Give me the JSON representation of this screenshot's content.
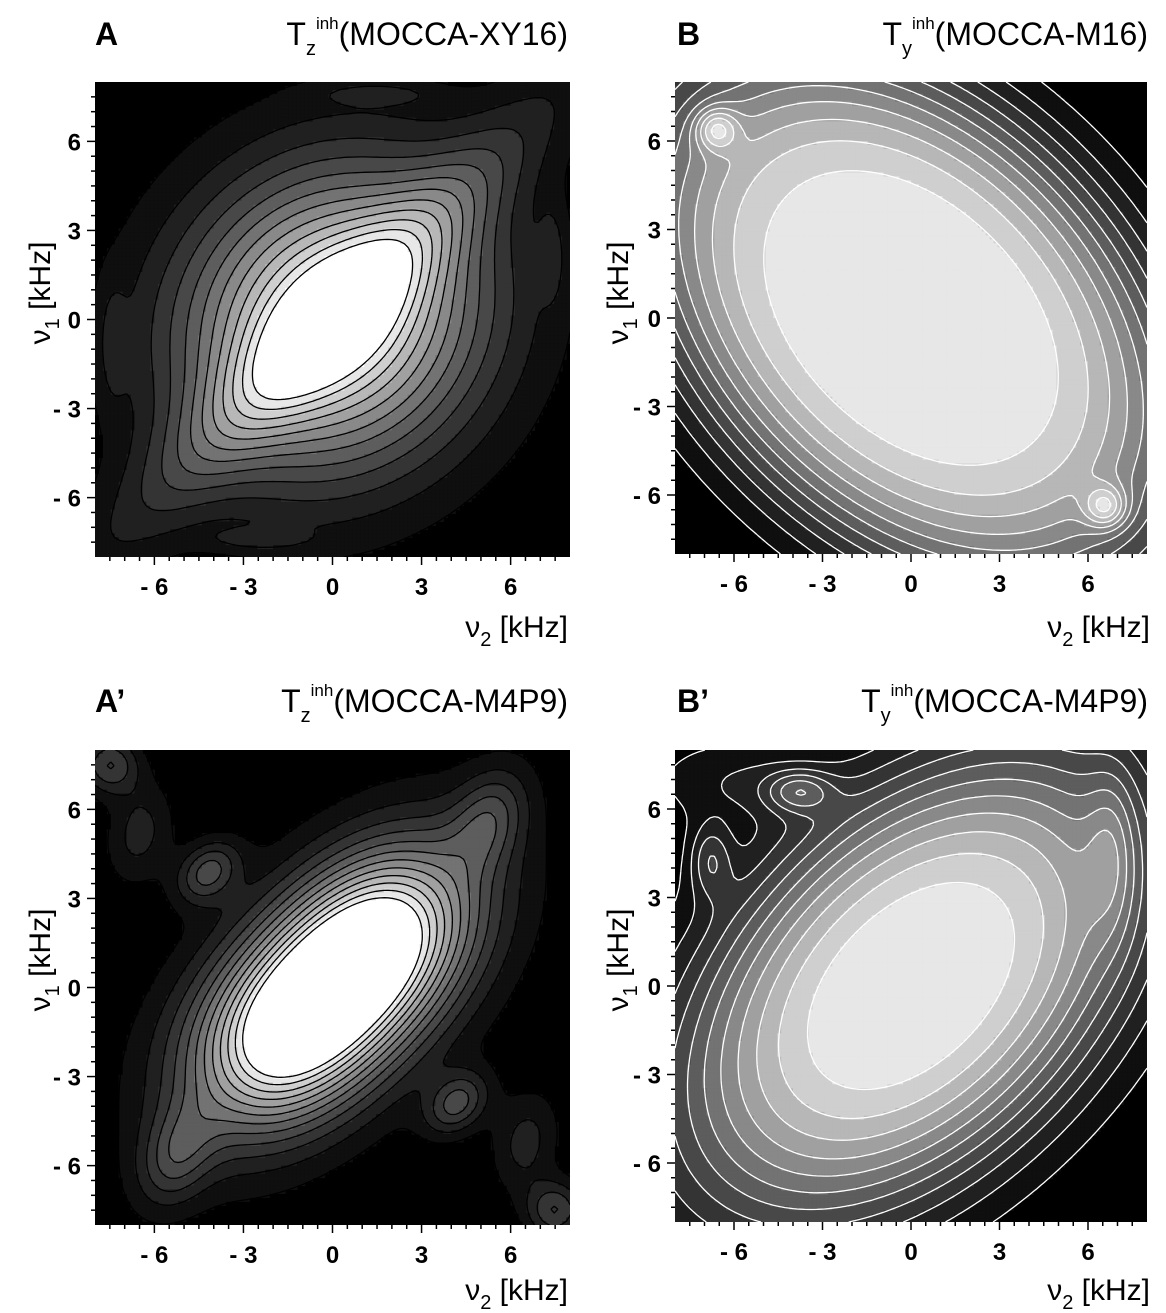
{
  "figure": {
    "background": "#ffffff",
    "contour_line_color_dark": "#000000",
    "contour_line_color_light": "#ffffff"
  },
  "chart_data": [
    {
      "type": "heatmap",
      "panel_label": "A",
      "title": {
        "base": "T",
        "sub": "z",
        "sup": "inh",
        "rest": "(MOCCA-XY16)"
      },
      "xlabel": {
        "base": "ν",
        "sub": "2",
        "rest": " [kHz]"
      },
      "ylabel": {
        "base": "ν",
        "sub": "1",
        "rest": " [kHz]"
      },
      "xlim": [
        -8,
        8
      ],
      "ylim": [
        -8,
        8
      ],
      "ticks": [
        -6,
        -3,
        0,
        3,
        6
      ],
      "tick_labels": [
        "- 6",
        "- 3",
        "0",
        "3",
        "6"
      ],
      "contour_lines": "dark",
      "features": [
        {
          "x": 0,
          "y": 0,
          "sx": 3.6,
          "sy": 3.6,
          "rho": 0.12,
          "amp": 1.05
        },
        {
          "x": 0,
          "y": 0,
          "sx": 5.5,
          "sy": 5.5,
          "rho": 0.96,
          "amp": 0.35
        },
        {
          "x": -7.4,
          "y": -0.8,
          "sx": 0.3,
          "sy": 1.3,
          "rho": 0,
          "amp": 0.12
        },
        {
          "x": 7.4,
          "y": 2.2,
          "sx": 0.3,
          "sy": 1.1,
          "rho": 0,
          "amp": 0.12
        },
        {
          "x": -2.5,
          "y": -7.4,
          "sx": 1.2,
          "sy": 0.25,
          "rho": 0,
          "amp": 0.12
        },
        {
          "x": 1.5,
          "y": 7.6,
          "sx": 1.3,
          "sy": 0.25,
          "rho": 0,
          "amp": 0.12
        }
      ]
    },
    {
      "type": "heatmap",
      "panel_label": "B",
      "title": {
        "base": "T",
        "sub": "y",
        "sup": "inh",
        "rest": "(MOCCA-M16)"
      },
      "xlabel": {
        "base": "ν",
        "sub": "2",
        "rest": " [kHz]"
      },
      "ylabel": {
        "base": "ν",
        "sub": "1",
        "rest": " [kHz]"
      },
      "xlim": [
        -8,
        8
      ],
      "ylim": [
        -8,
        8
      ],
      "ticks": [
        -6,
        -3,
        0,
        3,
        6
      ],
      "tick_labels": [
        "- 6",
        "- 3",
        "0",
        "3",
        "6"
      ],
      "contour_lines": "light",
      "features": [
        {
          "x": 0,
          "y": 0,
          "sx": 6.5,
          "sy": 6.5,
          "rho": -0.4,
          "amp": 1.0,
          "power": 4
        },
        {
          "x": -6.6,
          "y": 6.4,
          "sx": 0.5,
          "sy": 0.5,
          "rho": 0,
          "amp": 0.35
        },
        {
          "x": 6.6,
          "y": -6.4,
          "sx": 0.5,
          "sy": 0.5,
          "rho": 0,
          "amp": 0.35
        }
      ]
    },
    {
      "type": "heatmap",
      "panel_label": "A’",
      "title": {
        "base": "T",
        "sub": "z",
        "sup": "inh",
        "rest": "(MOCCA-M4P9)"
      },
      "xlabel": {
        "base": "ν",
        "sub": "2",
        "rest": " [kHz]"
      },
      "ylabel": {
        "base": "ν",
        "sub": "1",
        "rest": " [kHz]"
      },
      "xlim": [
        -8,
        8
      ],
      "ylim": [
        -8,
        8
      ],
      "ticks": [
        -6,
        -3,
        0,
        3,
        6
      ],
      "tick_labels": [
        "- 6",
        "- 3",
        "0",
        "3",
        "6"
      ],
      "contour_lines": "dark",
      "features": [
        {
          "x": -1.5,
          "y": -1.5,
          "sx": 2.2,
          "sy": 2.2,
          "rho": 0.3,
          "amp": 0.8
        },
        {
          "x": 1.5,
          "y": 1.5,
          "sx": 2.2,
          "sy": 2.2,
          "rho": 0.3,
          "amp": 0.8
        },
        {
          "x": 0,
          "y": 0,
          "sx": 3.5,
          "sy": 3.5,
          "rho": 0.55,
          "amp": 0.45
        },
        {
          "x": -4.2,
          "y": 3.9,
          "sx": 0.75,
          "sy": 0.75,
          "rho": 0.3,
          "amp": 0.35
        },
        {
          "x": 4.2,
          "y": -3.9,
          "sx": 0.75,
          "sy": 0.75,
          "rho": 0.3,
          "amp": 0.35
        },
        {
          "x": 5.3,
          "y": 5.7,
          "sx": 0.9,
          "sy": 1.2,
          "rho": 0.3,
          "amp": 0.28
        },
        {
          "x": -5.3,
          "y": -5.7,
          "sx": 0.9,
          "sy": 1.2,
          "rho": 0.3,
          "amp": 0.28
        },
        {
          "x": -6.5,
          "y": 5.2,
          "sx": 0.8,
          "sy": 1.2,
          "rho": 0.2,
          "amp": 0.2
        },
        {
          "x": 6.5,
          "y": -5.2,
          "sx": 0.8,
          "sy": 1.2,
          "rho": 0.2,
          "amp": 0.2
        },
        {
          "x": -7.5,
          "y": 7.5,
          "sx": 0.7,
          "sy": 0.7,
          "rho": 0,
          "amp": 0.33
        },
        {
          "x": 7.5,
          "y": -7.5,
          "sx": 0.7,
          "sy": 0.7,
          "rho": 0,
          "amp": 0.33
        }
      ]
    },
    {
      "type": "heatmap",
      "panel_label": "B’",
      "title": {
        "base": "T",
        "sub": "y",
        "sup": "inh",
        "rest": "(MOCCA-M4P9)"
      },
      "xlabel": {
        "base": "ν",
        "sub": "2",
        "rest": " [kHz]"
      },
      "ylabel": {
        "base": "ν",
        "sub": "1",
        "rest": " [kHz]"
      },
      "xlim": [
        -8,
        8
      ],
      "ylim": [
        -8,
        8
      ],
      "ticks": [
        -6,
        -3,
        0,
        3,
        6
      ],
      "tick_labels": [
        "- 6",
        "- 3",
        "0",
        "3",
        "6"
      ],
      "contour_lines": "light",
      "features": [
        {
          "x": 0,
          "y": 0,
          "sx": 5.6,
          "sy": 5.6,
          "rho": 0.45,
          "amp": 1.0,
          "power": 3
        },
        {
          "x": -3.8,
          "y": 6.6,
          "sx": 0.8,
          "sy": 0.5,
          "rho": 0,
          "amp": 0.3
        },
        {
          "x": -6.8,
          "y": 4.3,
          "sx": 0.5,
          "sy": 0.9,
          "rho": 0,
          "amp": 0.25
        },
        {
          "x": 6.8,
          "y": 4.6,
          "sx": 0.6,
          "sy": 2.0,
          "rho": 0,
          "amp": 0.2
        },
        {
          "x": -6.0,
          "y": 7.0,
          "sx": 2.0,
          "sy": 1.0,
          "rho": 0,
          "amp": 0.15
        }
      ]
    }
  ]
}
